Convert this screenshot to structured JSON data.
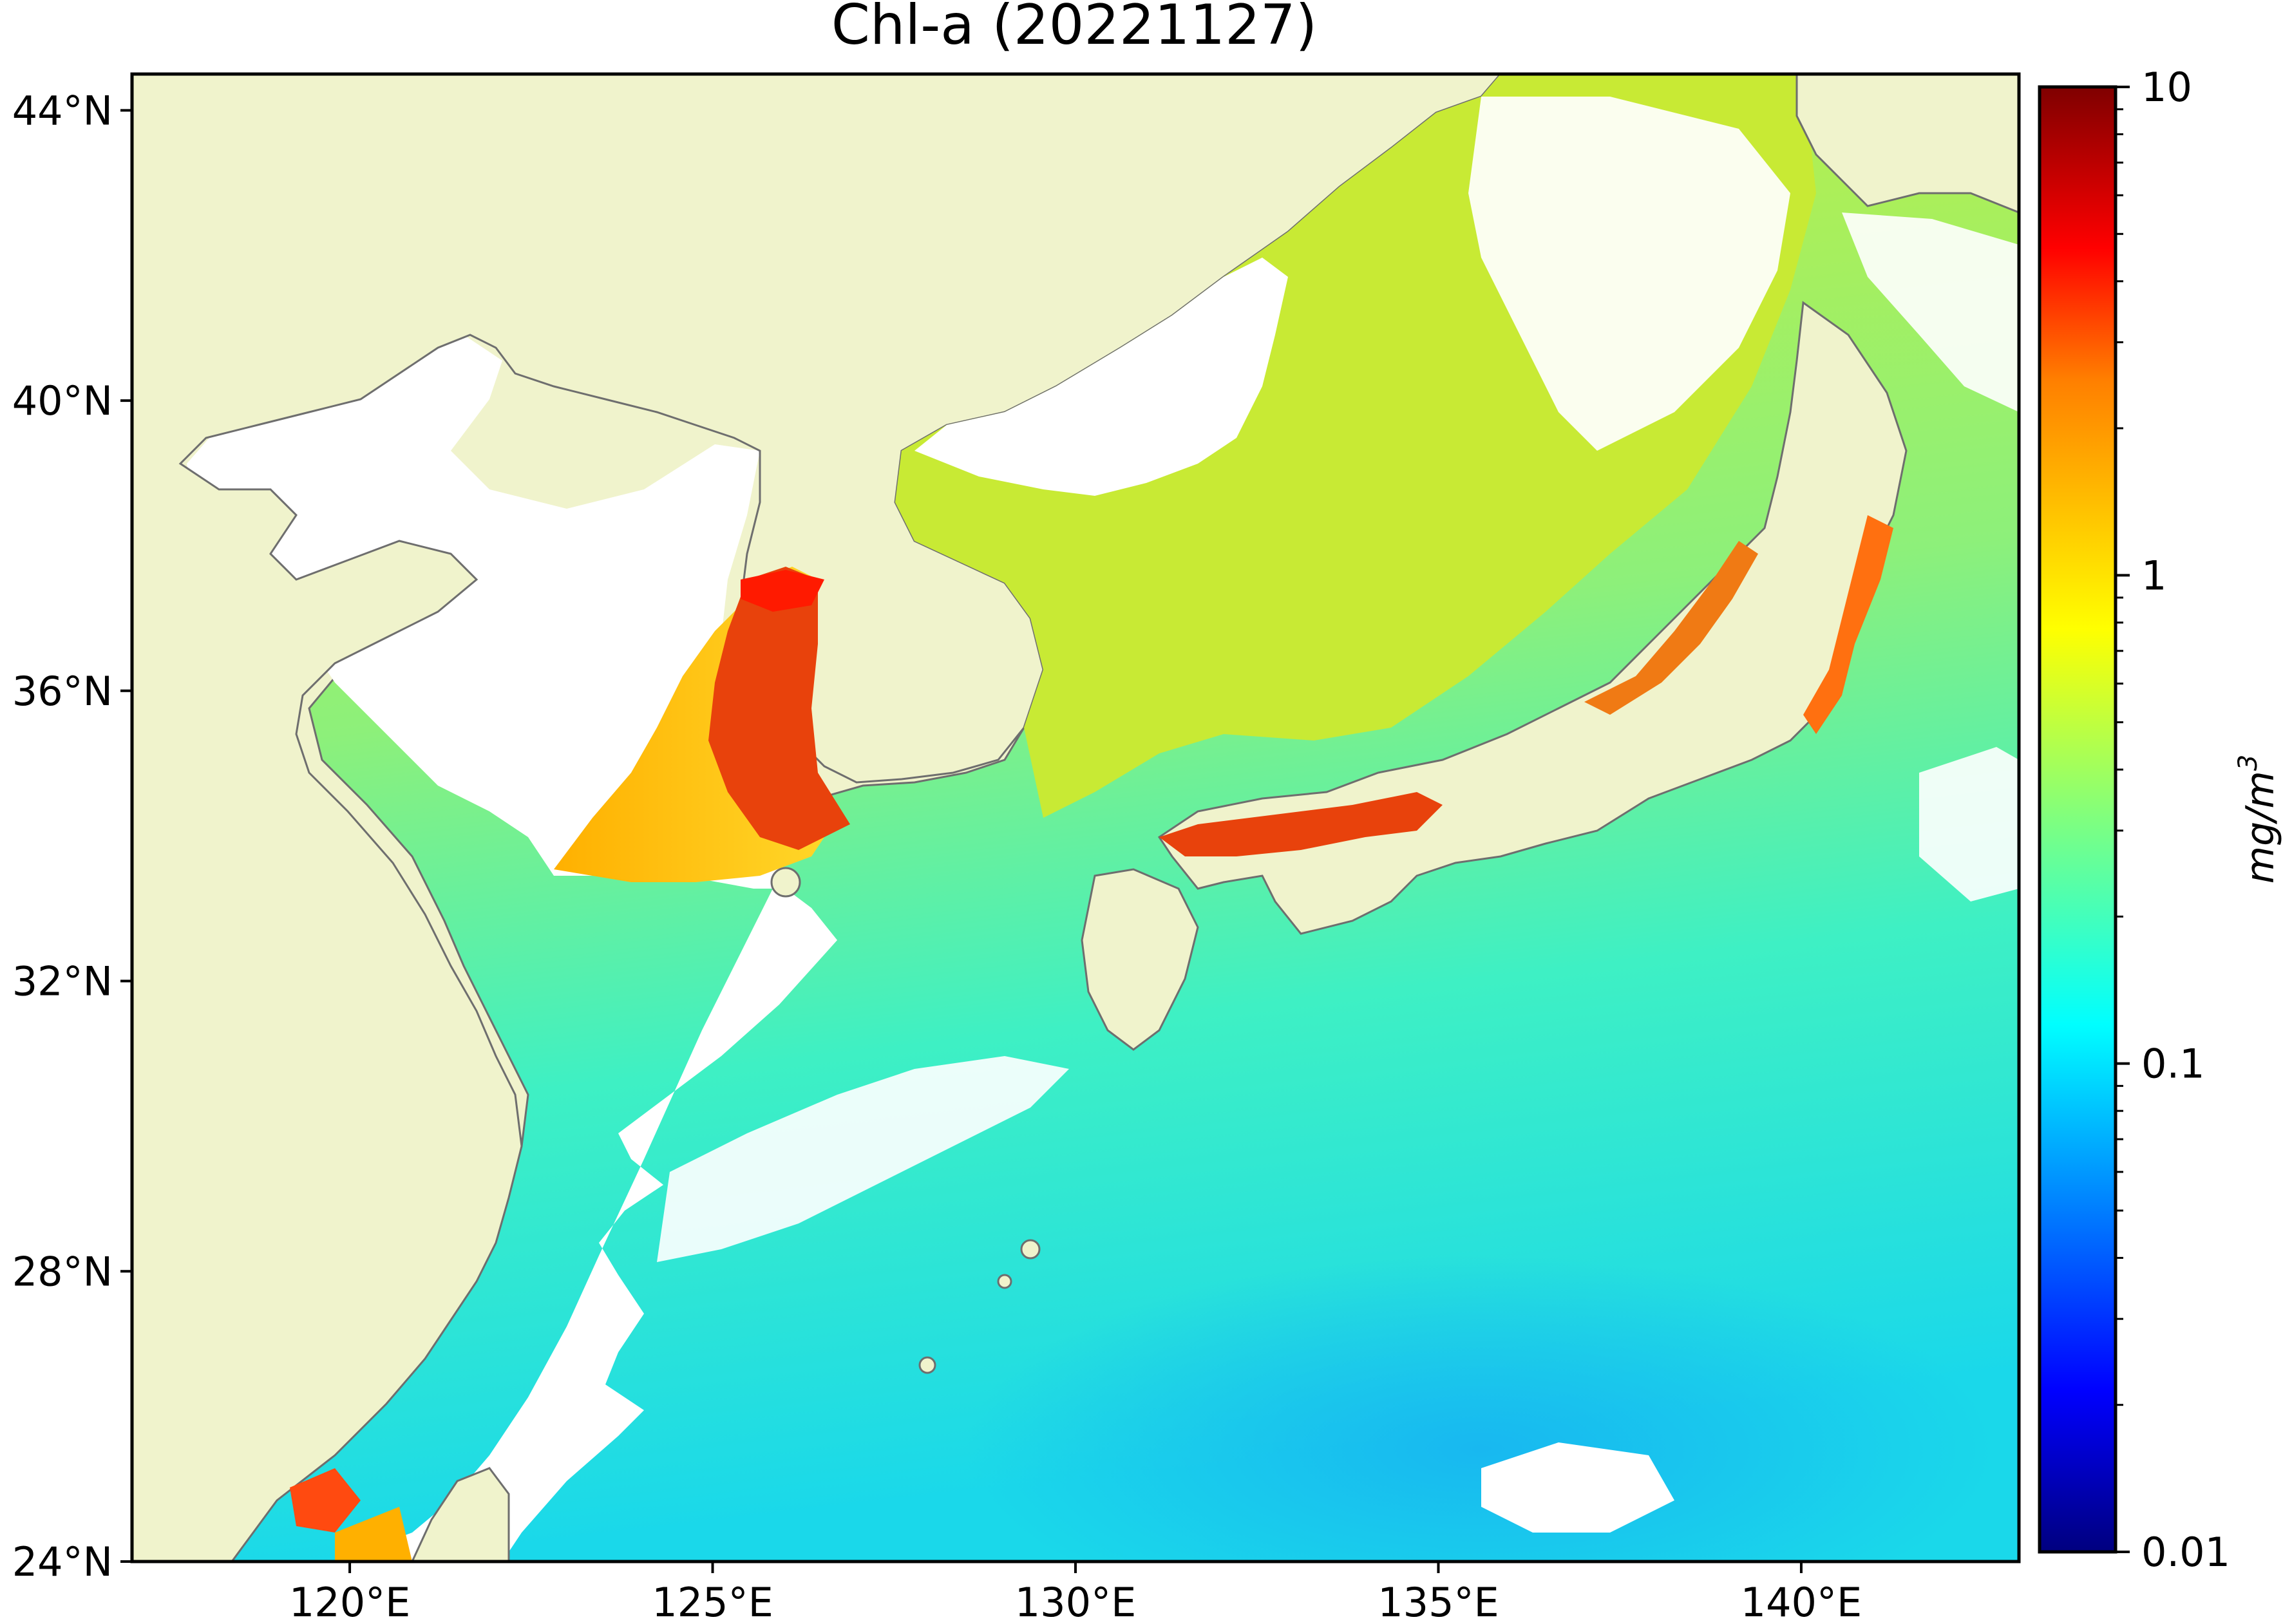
{
  "title": "Chl-a (20221127)",
  "map": {
    "land_color": "#f0f3cc",
    "coastline_color": "#6e6e6e",
    "no_data_color": "#ffffff",
    "lon_range": [
      117,
      143
    ],
    "lat_range": [
      24,
      44.5
    ],
    "lon_ticks": [
      {
        "value": 120,
        "label": "120°E"
      },
      {
        "value": 125,
        "label": "125°E"
      },
      {
        "value": 130,
        "label": "130°E"
      },
      {
        "value": 135,
        "label": "135°E"
      },
      {
        "value": 140,
        "label": "140°E"
      }
    ],
    "lat_ticks": [
      {
        "value": 24,
        "label": "24°N"
      },
      {
        "value": 28,
        "label": "28°N"
      },
      {
        "value": 32,
        "label": "32°N"
      },
      {
        "value": 36,
        "label": "36°N"
      },
      {
        "value": 40,
        "label": "40°N"
      },
      {
        "value": 44,
        "label": "44°N"
      }
    ]
  },
  "colorbar": {
    "label_base": "mg/m",
    "label_sup": "3",
    "scale": "log",
    "range": [
      0.01,
      10
    ],
    "ticks": [
      {
        "value": 10,
        "label": "10"
      },
      {
        "value": 1,
        "label": "1"
      },
      {
        "value": 0.1,
        "label": "0.1"
      },
      {
        "value": 0.01,
        "label": "0.01"
      }
    ],
    "colormap": [
      "#00007f",
      "#0000ff",
      "#007fff",
      "#00ffff",
      "#7fff7f",
      "#ffff00",
      "#ff7f00",
      "#ff0000",
      "#7f0000"
    ]
  }
}
